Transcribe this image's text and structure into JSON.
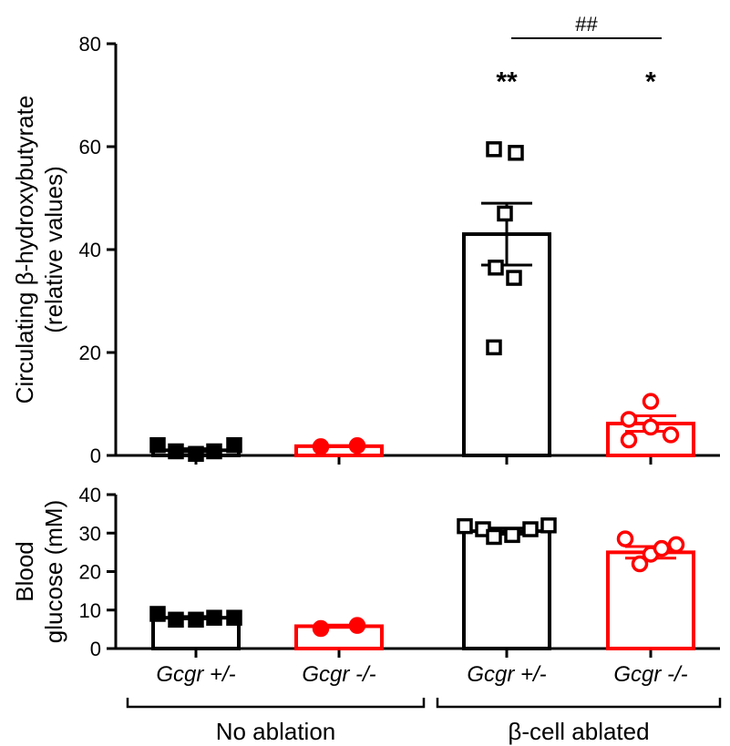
{
  "chart_data": [
    {
      "type": "bar",
      "panel": "top",
      "ylabel_line1": "Circulating β-hydroxybutyrate",
      "ylabel_line2": "(relative values)",
      "ylim": [
        0,
        80
      ],
      "yticks": [
        "0",
        "20",
        "40",
        "60",
        "80"
      ],
      "categories": [
        "Gcgr +/-",
        "Gcgr -/-",
        "Gcgr +/-",
        "Gcgr -/-"
      ],
      "series": [
        {
          "values": [
            1.0,
            1.8,
            43.0,
            6.2
          ],
          "sem": [
            0.3,
            0.1,
            6.0,
            1.5
          ],
          "colors": [
            "#000000",
            "#ff0000",
            "#000000",
            "#ff0000"
          ],
          "filled_points": [
            true,
            true,
            false,
            false
          ],
          "markers": [
            "square",
            "circle",
            "square",
            "circle"
          ],
          "points": [
            [
              2.0,
              0.8,
              0.3,
              0.8,
              2.0
            ],
            [
              1.7,
              1.9
            ],
            [
              59.5,
              58.8,
              47.0,
              36.5,
              34.5,
              21.0
            ],
            [
              10.5,
              7.0,
              5.5,
              4.0,
              3.0
            ]
          ]
        }
      ],
      "annotations": [
        {
          "text": "**",
          "category_index": 2,
          "y": 73
        },
        {
          "text": "*",
          "category_index": 3,
          "y": 73
        },
        {
          "text": "##",
          "from_index": 2,
          "to_index": 3,
          "y": 80
        }
      ]
    },
    {
      "type": "bar",
      "panel": "bottom",
      "ylabel_line1": "Blood",
      "ylabel_line2": "glucose (mM)",
      "ylim": [
        0,
        40
      ],
      "yticks": [
        "0",
        "10",
        "20",
        "30",
        "40"
      ],
      "categories": [
        "Gcgr +/-",
        "Gcgr -/-",
        "Gcgr +/-",
        "Gcgr -/-"
      ],
      "series": [
        {
          "values": [
            8.0,
            5.8,
            30.5,
            25.0
          ],
          "sem": [
            0.3,
            0.3,
            0.8,
            1.5
          ],
          "colors": [
            "#000000",
            "#ff0000",
            "#000000",
            "#ff0000"
          ],
          "filled_points": [
            true,
            true,
            false,
            false
          ],
          "markers": [
            "square",
            "circle",
            "square",
            "circle"
          ],
          "points": [
            [
              9.0,
              7.5,
              7.5,
              8.0,
              8.0
            ],
            [
              5.2,
              6.0
            ],
            [
              31.8,
              31.0,
              29.0,
              29.5,
              31.0,
              32.0
            ],
            [
              28.5,
              24.5,
              22.0,
              26.0,
              27.0
            ]
          ]
        }
      ]
    }
  ],
  "x_categories": [
    "Gcgr +/-",
    "Gcgr -/-",
    "Gcgr +/-",
    "Gcgr -/-"
  ],
  "groups": [
    "No ablation",
    "β-cell ablated"
  ]
}
